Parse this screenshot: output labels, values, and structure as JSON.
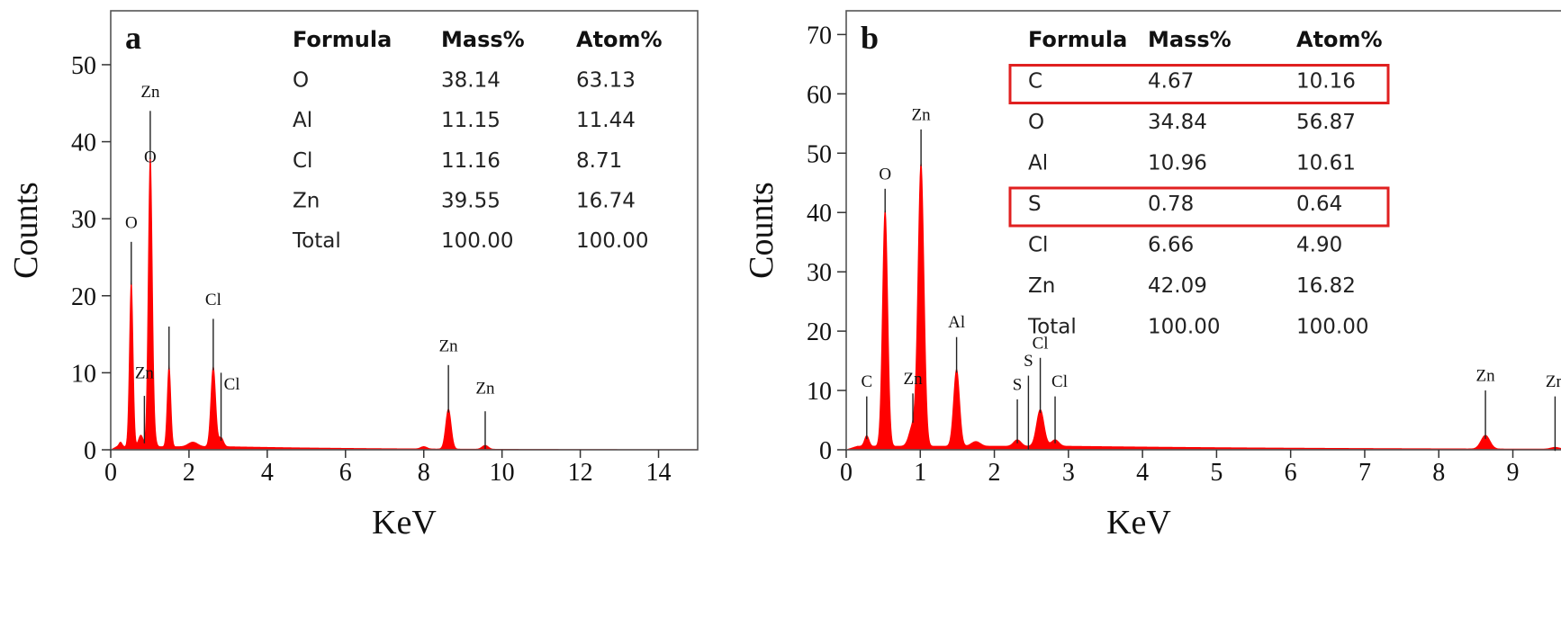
{
  "chart_data": [
    {
      "type": "area",
      "panel_label": "a",
      "xlabel": "KeV",
      "ylabel": "Counts",
      "xlim": [
        0,
        15
      ],
      "ylim": [
        0,
        57
      ],
      "x_ticks": [
        0,
        2,
        4,
        6,
        8,
        10,
        12,
        14
      ],
      "y_ticks": [
        0,
        10,
        20,
        30,
        40,
        50
      ],
      "x_tick_labels": [
        "0",
        "2",
        "4",
        "6",
        "8",
        "10",
        "12",
        "14"
      ],
      "y_tick_labels": [
        "0",
        "10",
        "20",
        "30",
        "40",
        "50"
      ],
      "color": "#ff0000",
      "baseline": 0.4,
      "peaks": [
        {
          "x": 0.25,
          "height": 0.6,
          "width": 0.04
        },
        {
          "x": 0.525,
          "height": 21.5,
          "width": 0.045
        },
        {
          "x": 0.77,
          "height": 1.5,
          "width": 0.06
        },
        {
          "x": 1.01,
          "height": 37.5,
          "width": 0.05
        },
        {
          "x": 1.1,
          "height": 1.5,
          "width": 0.05
        },
        {
          "x": 1.49,
          "height": 10.5,
          "width": 0.045
        },
        {
          "x": 2.1,
          "height": 0.6,
          "width": 0.12
        },
        {
          "x": 2.62,
          "height": 10.4,
          "width": 0.06
        },
        {
          "x": 2.82,
          "height": 1.2,
          "width": 0.06
        },
        {
          "x": 8.0,
          "height": 0.3,
          "width": 0.08
        },
        {
          "x": 8.63,
          "height": 5.2,
          "width": 0.07
        },
        {
          "x": 9.57,
          "height": 0.5,
          "width": 0.08
        }
      ],
      "peak_labels": [
        {
          "text": "O",
          "x": 0.525,
          "y": 27,
          "label_y": 29.5
        },
        {
          "text": "Zn",
          "x": 1.01,
          "y": 44,
          "label_y": 46.5
        },
        {
          "text": "O",
          "x": 1.01,
          "y": 35.5,
          "label_y": 38,
          "no_line": true
        },
        {
          "text": "",
          "x": 1.49,
          "y": 16,
          "label_y": 0
        },
        {
          "text": "Zn",
          "x": 0.86,
          "y": 7,
          "label_y": 10
        },
        {
          "text": "Cl",
          "x": 2.62,
          "y": 17,
          "label_y": 19.5
        },
        {
          "text": "Cl",
          "x": 2.82,
          "y": 10,
          "label_y": 8.5,
          "label_dx": 12
        },
        {
          "text": "Zn",
          "x": 8.63,
          "y": 11,
          "label_y": 13.5
        },
        {
          "text": "Zn",
          "x": 9.57,
          "y": 5,
          "label_y": 8
        }
      ],
      "table": {
        "headers": [
          "Formula",
          "Mass%",
          "Atom%"
        ],
        "rows": [
          [
            "O",
            "38.14",
            "63.13"
          ],
          [
            "Al",
            "11.15",
            "11.44"
          ],
          [
            "Cl",
            "11.16",
            "8.71"
          ],
          [
            "Zn",
            "39.55",
            "16.74"
          ],
          [
            "Total",
            "100.00",
            "100.00"
          ]
        ],
        "highlighted_rows": []
      }
    },
    {
      "type": "area",
      "panel_label": "b",
      "xlabel": "KeV",
      "ylabel": "Counts",
      "xlim": [
        0,
        9.65
      ],
      "ylim": [
        0,
        74
      ],
      "x_ticks": [
        0,
        1,
        2,
        3,
        4,
        5,
        6,
        7,
        8,
        9
      ],
      "y_ticks": [
        0,
        10,
        20,
        30,
        40,
        50,
        60,
        70
      ],
      "x_tick_labels": [
        "0",
        "1",
        "2",
        "3",
        "4",
        "5",
        "6",
        "7",
        "8",
        "9"
      ],
      "y_tick_labels": [
        "0",
        "10",
        "20",
        "30",
        "40",
        "50",
        "60",
        "70"
      ],
      "color": "#ff0000",
      "baseline": 0.6,
      "peaks": [
        {
          "x": 0.277,
          "height": 1.8,
          "width": 0.03
        },
        {
          "x": 0.525,
          "height": 40,
          "width": 0.035
        },
        {
          "x": 0.9,
          "height": 3.5,
          "width": 0.05
        },
        {
          "x": 1.01,
          "height": 47.5,
          "width": 0.04
        },
        {
          "x": 1.49,
          "height": 13,
          "width": 0.04
        },
        {
          "x": 1.75,
          "height": 0.8,
          "width": 0.06
        },
        {
          "x": 2.31,
          "height": 1.1,
          "width": 0.05
        },
        {
          "x": 2.62,
          "height": 6.2,
          "width": 0.05
        },
        {
          "x": 2.82,
          "height": 1.1,
          "width": 0.05
        },
        {
          "x": 8.63,
          "height": 2.3,
          "width": 0.06
        },
        {
          "x": 9.57,
          "height": 0.3,
          "width": 0.06
        }
      ],
      "peak_labels": [
        {
          "text": "C",
          "x": 0.277,
          "y": 9,
          "label_y": 11.5
        },
        {
          "text": "O",
          "x": 0.525,
          "y": 44,
          "label_y": 46.5
        },
        {
          "text": "Zn",
          "x": 1.01,
          "y": 54,
          "label_y": 56.5
        },
        {
          "text": "Zn",
          "x": 0.9,
          "y": 9.5,
          "label_y": 12
        },
        {
          "text": "Al",
          "x": 1.49,
          "y": 19,
          "label_y": 21.5
        },
        {
          "text": "S",
          "x": 2.31,
          "y": 8.5,
          "label_y": 11
        },
        {
          "text": "S",
          "x": 2.46,
          "y": 12.5,
          "label_y": 15
        },
        {
          "text": "Cl",
          "x": 2.62,
          "y": 15.5,
          "label_y": 18
        },
        {
          "text": "Cl",
          "x": 2.82,
          "y": 9,
          "label_y": 11.5,
          "label_dx": 5
        },
        {
          "text": "Zn",
          "x": 8.63,
          "y": 10,
          "label_y": 12.5
        },
        {
          "text": "Zn",
          "x": 9.57,
          "y": 9,
          "label_y": 11.5
        }
      ],
      "table": {
        "headers": [
          "Formula",
          "Mass%",
          "Atom%"
        ],
        "rows": [
          [
            "C",
            "4.67",
            "10.16"
          ],
          [
            "O",
            "34.84",
            "56.87"
          ],
          [
            "Al",
            "10.96",
            "10.61"
          ],
          [
            "S",
            "0.78",
            "0.64"
          ],
          [
            "Cl",
            "6.66",
            "4.90"
          ],
          [
            "Zn",
            "42.09",
            "16.82"
          ],
          [
            "Total",
            "100.00",
            "100.00"
          ]
        ],
        "highlighted_rows": [
          0,
          3
        ],
        "highlight_color": "#e02020"
      }
    }
  ]
}
